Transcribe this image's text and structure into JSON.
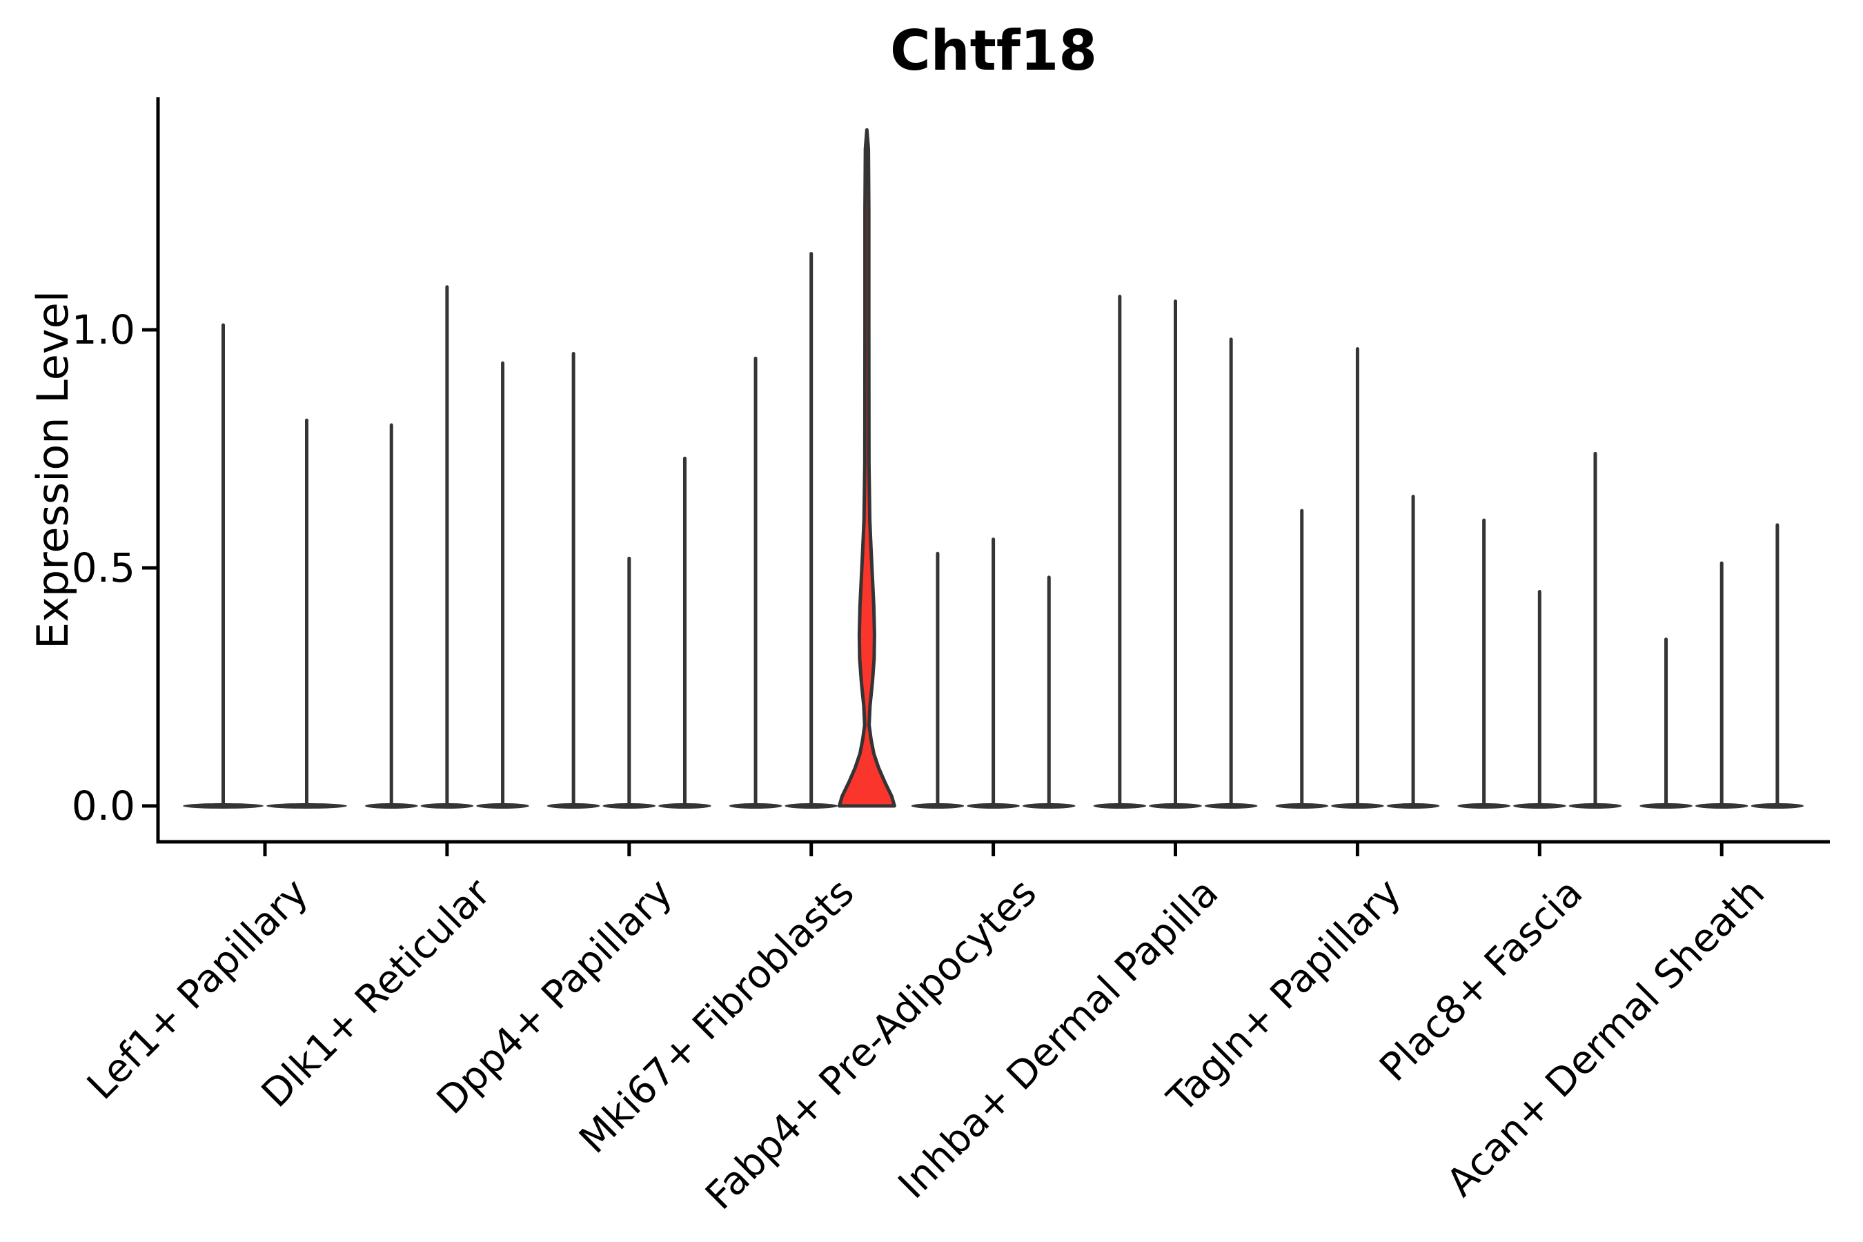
{
  "chart_data": {
    "type": "violin",
    "title": "Chtf18",
    "xlabel": "",
    "ylabel": "Expression Level",
    "ylim": [
      0,
      1.45
    ],
    "y_tick_values": [
      0.0,
      0.5,
      1.0
    ],
    "y_tick_labels": [
      "0.0",
      "0.5",
      "1.0"
    ],
    "grid": false,
    "legend": "none",
    "categories": [
      "Lef1+ Papillary",
      "Dlk1+ Reticular",
      "Dpp4+ Papillary",
      "Mki67+ Fibroblasts",
      "Fabp4+ Pre-Adipocytes",
      "Inhba+ Dermal Papilla",
      "Tagln+ Papillary",
      "Plac8+ Fascia",
      "Acan+ Dermal Sheath"
    ],
    "groups": [
      {
        "maxima": [
          1.01,
          0.81
        ]
      },
      {
        "maxima": [
          0.8,
          1.09,
          0.93
        ]
      },
      {
        "maxima": [
          0.95,
          0.52,
          0.73
        ]
      },
      {
        "maxima": [
          0.94,
          1.16,
          1.42
        ],
        "highlight_index": 2
      },
      {
        "maxima": [
          0.53,
          0.56,
          0.48
        ]
      },
      {
        "maxima": [
          1.07,
          1.06,
          0.98
        ]
      },
      {
        "maxima": [
          0.62,
          0.96,
          0.65
        ]
      },
      {
        "maxima": [
          0.6,
          0.45,
          0.74
        ]
      },
      {
        "maxima": [
          0.35,
          0.51,
          0.59
        ]
      }
    ],
    "highlight_profile": [
      [
        0.0,
        40.0
      ],
      [
        0.02,
        36.0
      ],
      [
        0.05,
        26.0
      ],
      [
        0.08,
        17.0
      ],
      [
        0.11,
        10.0
      ],
      [
        0.14,
        6.0
      ],
      [
        0.17,
        3.2
      ],
      [
        0.21,
        4.5
      ],
      [
        0.26,
        8.0
      ],
      [
        0.31,
        10.5
      ],
      [
        0.36,
        11.0
      ],
      [
        0.42,
        10.0
      ],
      [
        0.48,
        8.0
      ],
      [
        0.54,
        6.0
      ],
      [
        0.6,
        4.2
      ],
      [
        0.72,
        3.0
      ],
      [
        1.0,
        2.8
      ],
      [
        1.25,
        2.8
      ],
      [
        1.38,
        2.2
      ],
      [
        1.42,
        0.0
      ]
    ],
    "colors": {
      "violin_stroke": "#343434",
      "highlight_fill": "#F9352C",
      "axis": "#000000"
    }
  }
}
